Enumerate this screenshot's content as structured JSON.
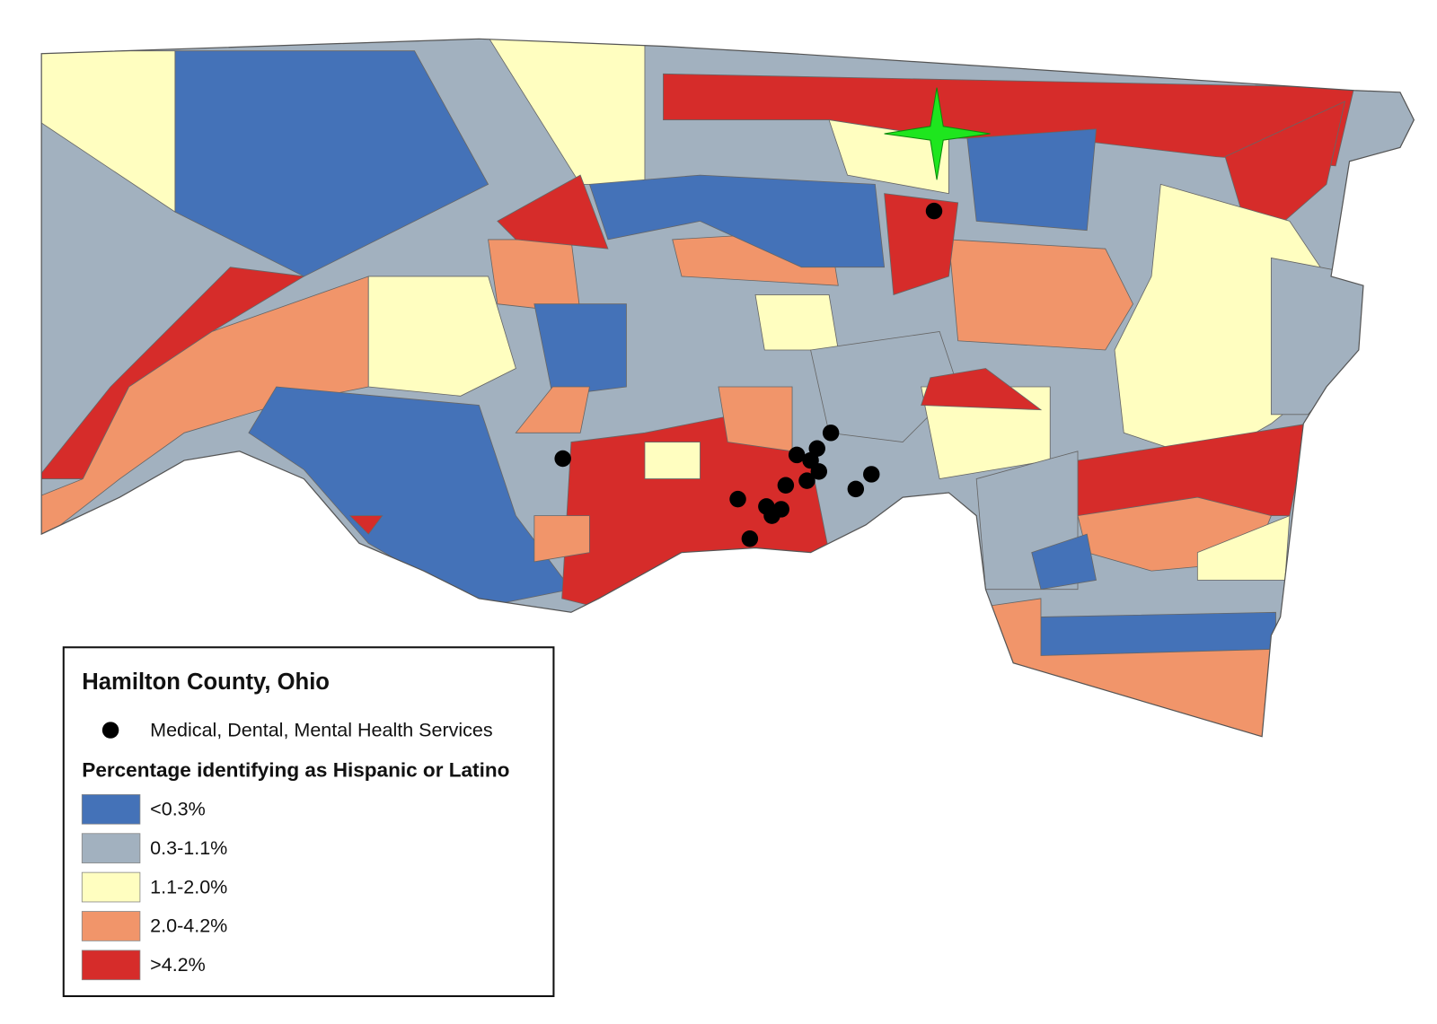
{
  "legend": {
    "title": "Hamilton County, Ohio",
    "point_label": "Medical, Dental, Mental Health Services",
    "heading": "Percentage identifying as Hispanic or Latino",
    "classes": [
      {
        "label": "<0.3%",
        "color": "#4472b8"
      },
      {
        "label": "0.3-1.1%",
        "color": "#a2b1bf"
      },
      {
        "label": "1.1-2.0%",
        "color": "#fffec0"
      },
      {
        "label": "2.0-4.2%",
        "color": "#f1956a"
      },
      {
        "label": ">4.2%",
        "color": "#d62c2a"
      }
    ]
  }
}
